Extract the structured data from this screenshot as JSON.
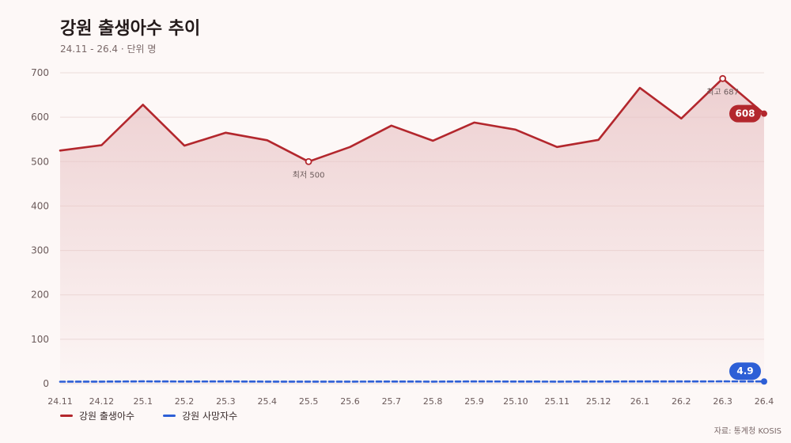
{
  "header": {
    "title": "강원 출생아수 추이",
    "subtitle": "24.11 - 26.4 · 단위 명"
  },
  "source": "자료: 통계청 KOSIS",
  "colors": {
    "birth": "#b3272d",
    "death": "#2d5fd6",
    "grid": "#ecdcd9",
    "area_top": "#e8c2c4",
    "background": "#fdf8f7"
  },
  "chart_data": {
    "type": "line",
    "title": "강원 출생아수 추이",
    "subtitle": "24.11 - 26.4 · 단위 명",
    "x": [
      "24.11",
      "24.12",
      "25.1",
      "25.2",
      "25.3",
      "25.4",
      "25.5",
      "25.6",
      "25.7",
      "25.8",
      "25.9",
      "25.10",
      "25.11",
      "25.12",
      "26.1",
      "26.2",
      "26.3",
      "26.4"
    ],
    "ylim": [
      0,
      700
    ],
    "yticks": [
      0,
      100,
      200,
      300,
      400,
      500,
      600,
      700
    ],
    "grid": true,
    "legend_position": "bottom-left",
    "series": [
      {
        "name": "강원 출생아수",
        "color": "#b3272d",
        "style": "solid",
        "area": true,
        "values": [
          525,
          537,
          628,
          536,
          565,
          548,
          500,
          533,
          581,
          547,
          588,
          572,
          533,
          549,
          666,
          597,
          687,
          608
        ]
      },
      {
        "name": "강원 사망자수",
        "color": "#2d5fd6",
        "style": "dashed",
        "area": false,
        "values": [
          4.5,
          4.6,
          5.2,
          4.8,
          4.9,
          4.7,
          4.6,
          4.7,
          4.8,
          4.7,
          4.9,
          4.8,
          4.7,
          4.8,
          5.0,
          4.9,
          5.1,
          4.9
        ]
      }
    ],
    "annotations": [
      {
        "label": "최저 500",
        "series": 0,
        "index": 6,
        "position": "below"
      },
      {
        "label": "최고 687",
        "series": 0,
        "index": 16,
        "position": "below"
      }
    ],
    "end_badges": [
      {
        "label": "608",
        "series": 0
      },
      {
        "label": "4.9",
        "series": 1
      }
    ]
  }
}
